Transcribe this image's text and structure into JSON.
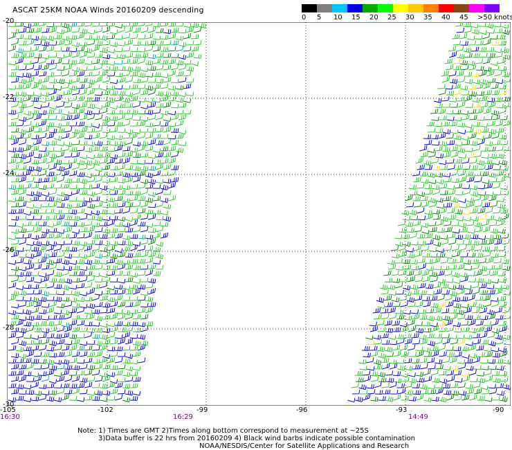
{
  "title": "ASCAT 25KM NOAA Winds 20160209 descending",
  "scale": {
    "colors": [
      "#000000",
      "#808080",
      "#00c8ff",
      "#0000ff",
      "#00aa00",
      "#00ff00",
      "#ffff00",
      "#ffc800",
      "#ff8000",
      "#ff0000",
      "#8b4513",
      "#ff00ff",
      "#8000ff"
    ],
    "labels": [
      "0",
      "5",
      "10",
      "15",
      "20",
      "25",
      "30",
      "35",
      "40",
      "45"
    ],
    "unit_label": ">50 knots"
  },
  "map": {
    "lat_labels": [
      "-20",
      "-22",
      "-24",
      "-26",
      "-28",
      "-30"
    ],
    "lon_labels": [
      "-105",
      "-102",
      "-99",
      "-96",
      "-93",
      "-90"
    ],
    "times": [
      "16:30",
      "16:29",
      "14:49"
    ],
    "swaths": [
      {
        "name": "west-swath",
        "dominant_colors": [
          "#00cc00",
          "#0000ff",
          "#00aa00"
        ]
      },
      {
        "name": "east-swath",
        "dominant_colors": [
          "#00cc00",
          "#00aa00",
          "#0000ff",
          "#ffff00"
        ]
      }
    ]
  },
  "notes": {
    "line1": "Note: 1) Times are GMT 2)Times along bottom correspond to measurement at ~25S",
    "line2": "3)Data buffer is 22 hrs from 20160209 4) Black wind barbs indicate possible contamination",
    "line3": "NOAA/NESDIS/Center for Satellite Applications and Research"
  }
}
